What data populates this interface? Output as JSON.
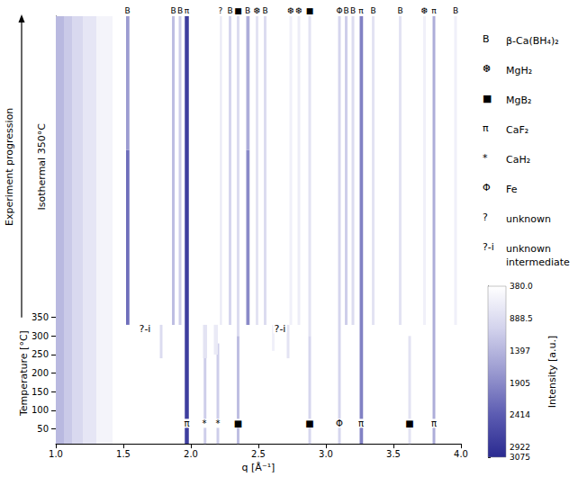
{
  "chart_data": {
    "type": "heatmap",
    "x_label": "q [Å⁻¹]",
    "y_label": "Temperature [°C]",
    "y_label_isothermal": "Isothermal 350°C",
    "progression_label": "Experiment progression",
    "xlim": [
      1,
      4
    ],
    "xticks": [
      {
        "value": 1,
        "label": "1.0"
      },
      {
        "value": 1.5,
        "label": "1.5"
      },
      {
        "value": 2,
        "label": "2.0"
      },
      {
        "value": 2.5,
        "label": "2.5"
      },
      {
        "value": 3,
        "label": "3.0"
      },
      {
        "value": 3.5,
        "label": "3.5"
      },
      {
        "value": 4,
        "label": "4.0"
      }
    ],
    "ylim": [
      10,
      1160
    ],
    "yticks": [
      50,
      100,
      150,
      200,
      250,
      300,
      350
    ],
    "cells": [
      [
        1.0,
        1.06,
        10,
        1160,
        1350
      ],
      [
        1.06,
        1.12,
        10,
        1160,
        1150
      ],
      [
        1.12,
        1.2,
        10,
        1160,
        950
      ],
      [
        1.2,
        1.3,
        10,
        1160,
        750
      ],
      [
        1.3,
        1.42,
        10,
        1160,
        550
      ],
      [
        1.955,
        1.985,
        10,
        1160,
        2800
      ],
      [
        2.095,
        2.115,
        10,
        280,
        1100
      ],
      [
        2.19,
        2.21,
        10,
        280,
        1100
      ],
      [
        2.34,
        2.36,
        10,
        300,
        1300
      ],
      [
        2.87,
        2.89,
        10,
        300,
        1000
      ],
      [
        3.09,
        3.11,
        10,
        1160,
        1000
      ],
      [
        3.25,
        3.275,
        10,
        1160,
        2000
      ],
      [
        3.61,
        3.63,
        10,
        300,
        800
      ],
      [
        3.79,
        3.81,
        10,
        1160,
        1500
      ],
      [
        1.77,
        1.79,
        240,
        330,
        900
      ],
      [
        2.09,
        2.12,
        240,
        330,
        800
      ],
      [
        2.17,
        2.2,
        250,
        330,
        700
      ],
      [
        2.6,
        2.62,
        260,
        330,
        600
      ],
      [
        2.71,
        2.73,
        240,
        330,
        800
      ],
      [
        1.52,
        1.545,
        330,
        800,
        2200
      ],
      [
        1.52,
        1.545,
        800,
        1160,
        1700
      ],
      [
        1.86,
        1.88,
        330,
        1160,
        1300
      ],
      [
        1.91,
        1.93,
        330,
        1160,
        1100
      ],
      [
        2.215,
        2.23,
        330,
        1160,
        700
      ],
      [
        2.28,
        2.3,
        330,
        1160,
        1000
      ],
      [
        2.34,
        2.36,
        300,
        1160,
        900
      ],
      [
        2.41,
        2.435,
        330,
        800,
        1900
      ],
      [
        2.41,
        2.435,
        800,
        1160,
        1500
      ],
      [
        2.48,
        2.5,
        330,
        1160,
        800
      ],
      [
        2.54,
        2.56,
        330,
        1160,
        900
      ],
      [
        2.73,
        2.75,
        330,
        1160,
        600
      ],
      [
        2.79,
        2.81,
        330,
        1160,
        650
      ],
      [
        2.87,
        2.89,
        300,
        1160,
        800
      ],
      [
        3.14,
        3.16,
        330,
        1160,
        1100
      ],
      [
        3.19,
        3.21,
        330,
        1160,
        900
      ],
      [
        3.34,
        3.36,
        330,
        1160,
        800
      ],
      [
        3.54,
        3.56,
        330,
        1160,
        800
      ],
      [
        3.72,
        3.74,
        330,
        1160,
        600
      ],
      [
        3.95,
        3.97,
        330,
        1160,
        600
      ]
    ],
    "colorbar": {
      "label": "Intensity [a.u.]",
      "range": [
        380,
        3075
      ],
      "ticks": [
        {
          "value": 380,
          "label": "380.0"
        },
        888.5,
        1397,
        1905,
        2414,
        2922,
        3075
      ]
    },
    "annotations": [
      {
        "text": "?-i",
        "x": 1.66,
        "y": 320
      },
      {
        "text": "?-i",
        "x": 2.66,
        "y": 320
      }
    ],
    "top_markers": [
      {
        "text": "B",
        "x": 1.53
      },
      {
        "text": "B",
        "x": 1.87
      },
      {
        "text": "B",
        "x": 1.92
      },
      {
        "text": "π",
        "x": 1.97
      },
      {
        "text": "?",
        "x": 2.22
      },
      {
        "text": "B",
        "x": 2.29
      },
      {
        "text": "■",
        "x": 2.35
      },
      {
        "text": "B",
        "x": 2.42
      },
      {
        "text": "❆",
        "x": 2.49
      },
      {
        "text": "B",
        "x": 2.55
      },
      {
        "text": "❆",
        "x": 2.74
      },
      {
        "text": "❆",
        "x": 2.8
      },
      {
        "text": "■",
        "x": 2.88
      },
      {
        "text": "Φ",
        "x": 3.1
      },
      {
        "text": "B",
        "x": 3.15
      },
      {
        "text": "B",
        "x": 3.2
      },
      {
        "text": "π",
        "x": 3.26
      },
      {
        "text": "B",
        "x": 3.35
      },
      {
        "text": "B",
        "x": 3.55
      },
      {
        "text": "❆",
        "x": 3.73
      },
      {
        "text": "π",
        "x": 3.8
      },
      {
        "text": "B",
        "x": 3.96
      }
    ],
    "bottom_markers": [
      {
        "text": "π",
        "x": 1.97,
        "y": 65
      },
      {
        "text": "*",
        "x": 2.1,
        "y": 65
      },
      {
        "text": "*",
        "x": 2.2,
        "y": 65
      },
      {
        "text": "■",
        "x": 2.35,
        "y": 65
      },
      {
        "text": "■",
        "x": 2.88,
        "y": 65
      },
      {
        "text": "Φ",
        "x": 3.1,
        "y": 65
      },
      {
        "text": "π",
        "x": 3.26,
        "y": 65
      },
      {
        "text": "■",
        "x": 3.62,
        "y": 65
      },
      {
        "text": "π",
        "x": 3.8,
        "y": 65
      }
    ],
    "phase_key": [
      {
        "symbol": "B",
        "name": "β-Ca(BH₄)₂"
      },
      {
        "symbol": "❆",
        "name": "MgH₂"
      },
      {
        "symbol": "■",
        "name": "MgB₂"
      },
      {
        "symbol": "π",
        "name": "CaF₂"
      },
      {
        "symbol": "*",
        "name": "CaH₂"
      },
      {
        "symbol": "Φ",
        "name": "Fe"
      },
      {
        "symbol": "?",
        "name": "unknown"
      },
      {
        "symbol": "?-i",
        "name": "unknown intermediate"
      }
    ]
  }
}
